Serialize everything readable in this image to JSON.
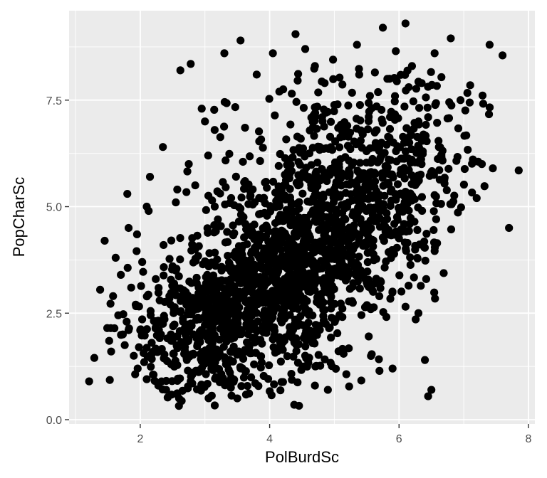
{
  "chart_data": {
    "type": "scatter",
    "title": "",
    "xlabel": "PolBurdSc",
    "ylabel": "PopCharSc",
    "xlim": [
      0.9,
      8.1
    ],
    "ylim": [
      -0.1,
      9.6
    ],
    "x_ticks": [
      2,
      4,
      6,
      8
    ],
    "x_tick_labels": [
      "2",
      "4",
      "6",
      "8"
    ],
    "y_ticks": [
      0,
      2.5,
      5,
      7.5
    ],
    "y_tick_labels": [
      "0.0",
      "2.5",
      "5.0",
      "7.5"
    ],
    "grid": true,
    "legend": "none",
    "colors": {
      "panel": "#ebebeb",
      "grid": "#ffffff",
      "point": "#000000"
    },
    "series": [
      {
        "x": [
          1.21,
          1.29,
          1.38,
          1.45,
          1.49,
          1.52,
          1.55,
          1.58,
          1.62,
          1.66,
          1.7,
          1.73,
          1.76,
          1.79,
          1.82,
          1.86,
          1.9,
          1.93,
          1.96,
          2.0,
          2.03,
          2.06,
          2.1,
          2.13,
          2.16,
          2.2,
          2.24,
          2.28,
          2.32,
          2.36,
          2.4,
          2.45,
          2.5,
          2.55,
          2.6,
          2.66,
          2.72,
          2.78,
          1.8,
          1.95,
          2.15,
          2.35,
          2.55,
          2.75,
          2.85,
          2.95,
          3.05,
          3.15,
          2.62,
          2.78,
          3.0,
          3.3,
          3.55,
          3.62,
          3.8,
          4.05,
          4.15,
          4.4,
          4.55,
          4.7,
          4.85,
          4.98,
          5.05,
          5.2,
          5.35,
          5.55,
          5.75,
          5.82,
          5.95,
          6.1,
          6.2,
          6.35,
          6.45,
          6.55,
          6.65,
          6.8,
          6.95,
          7.1,
          7.2,
          7.28,
          7.4,
          7.45,
          7.6,
          7.7,
          7.85,
          6.4,
          6.5,
          6.45,
          6.42,
          3.1,
          3.5,
          2.85,
          4.38,
          4.7,
          4.9,
          5.9,
          6.3,
          5.6,
          5.45,
          3.95,
          4.55,
          3.2,
          2.5,
          2.3,
          2.1
        ],
        "y": [
          0.9,
          1.45,
          3.05,
          4.2,
          2.15,
          1.85,
          1.6,
          2.9,
          3.8,
          2.45,
          3.4,
          2.0,
          1.75,
          2.3,
          4.5,
          3.1,
          1.5,
          2.7,
          1.2,
          2.1,
          3.7,
          1.35,
          0.95,
          4.9,
          2.55,
          1.6,
          3.3,
          0.8,
          2.0,
          4.1,
          0.7,
          2.9,
          1.85,
          3.5,
          0.5,
          2.3,
          1.4,
          0.9,
          5.3,
          4.35,
          5.7,
          6.4,
          5.1,
          6.0,
          5.5,
          7.3,
          6.2,
          6.8,
          8.2,
          8.35,
          7.0,
          8.6,
          8.9,
          5.6,
          8.1,
          8.6,
          7.7,
          9.05,
          8.7,
          8.3,
          7.9,
          8.45,
          7.4,
          6.9,
          8.8,
          7.6,
          9.2,
          8.0,
          8.65,
          9.3,
          8.3,
          7.9,
          7.1,
          8.6,
          6.2,
          8.95,
          7.5,
          7.85,
          5.2,
          6.0,
          8.8,
          5.9,
          8.55,
          4.5,
          5.85,
          1.4,
          0.7,
          0.55,
          3.3,
          1.2,
          0.5,
          4.0,
          0.35,
          0.8,
          0.7,
          1.2,
          2.5,
          3.0,
          4.5,
          3.2,
          2.0,
          4.7,
          3.6,
          2.8,
          5.0
        ]
      }
    ]
  }
}
